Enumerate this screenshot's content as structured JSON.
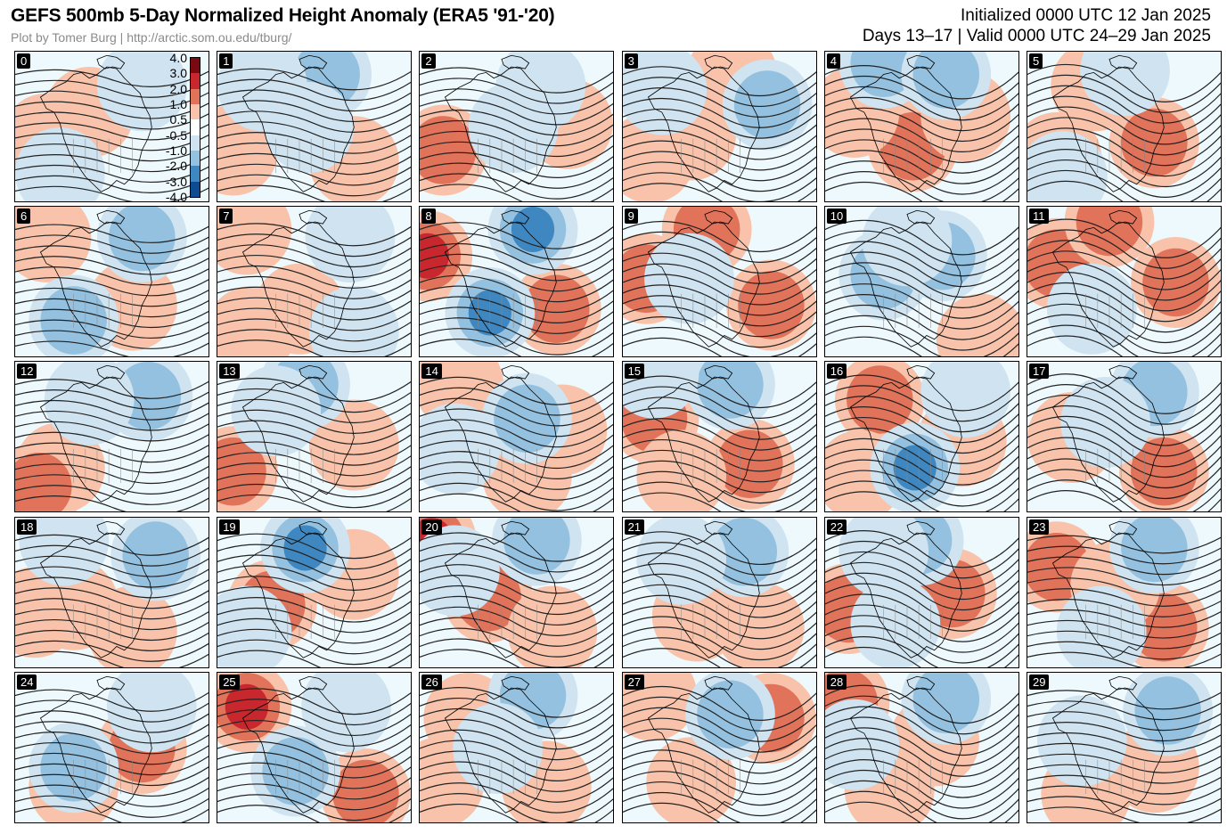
{
  "header": {
    "title": "GEFS 500mb 5-Day Normalized Height Anomaly (ERA5 '91-'20)",
    "credit": "Plot by Tomer Burg | http://arctic.som.ou.edu/tburg/",
    "initialized": "Initialized 0000 UTC 12 Jan 2025",
    "valid": "Days 13–17 | Valid 0000 UTC 24–29 Jan 2025"
  },
  "colorbar": {
    "ticks": [
      "4.0",
      "3.0",
      "2.0",
      "1.0",
      "0.5",
      "-0.5",
      "-1.0",
      "-2.0",
      "-3.0",
      "-4.0"
    ],
    "colors": [
      "#7a0a12",
      "#c8272d",
      "#e0735a",
      "#f8c3aa",
      "#ffffff",
      "#cfe3f0",
      "#93c1df",
      "#3f87c0",
      "#0e4b90"
    ]
  },
  "members": [
    {
      "label": "0",
      "pos": [
        [
          160,
          230,
          1
        ],
        [
          380,
          160,
          1
        ]
      ],
      "neg": [
        [
          230,
          320,
          1
        ],
        [
          650,
          90,
          1
        ]
      ]
    },
    {
      "label": "1",
      "pos": [
        [
          80,
          260,
          1
        ],
        [
          700,
          290,
          1
        ]
      ],
      "neg": [
        [
          560,
          60,
          2
        ],
        [
          230,
          90,
          1
        ],
        [
          470,
          200,
          1
        ]
      ]
    },
    {
      "label": "2",
      "pos": [
        [
          120,
          260,
          2
        ],
        [
          760,
          190,
          1
        ]
      ],
      "neg": [
        [
          480,
          200,
          1
        ],
        [
          620,
          90,
          1
        ]
      ]
    },
    {
      "label": "3",
      "pos": [
        [
          140,
          280,
          1
        ],
        [
          350,
          220,
          1
        ],
        [
          560,
          60,
          1
        ]
      ],
      "neg": [
        [
          740,
          140,
          2
        ],
        [
          200,
          100,
          1
        ]
      ]
    },
    {
      "label": "4",
      "pos": [
        [
          450,
          250,
          2
        ],
        [
          720,
          170,
          1
        ],
        [
          150,
          160,
          1
        ]
      ],
      "neg": [
        [
          300,
          30,
          2
        ],
        [
          620,
          60,
          2
        ]
      ]
    },
    {
      "label": "5",
      "pos": [
        [
          350,
          90,
          1
        ],
        [
          650,
          240,
          2
        ],
        [
          150,
          280,
          1
        ]
      ],
      "neg": [
        [
          500,
          50,
          1
        ],
        [
          180,
          330,
          1
        ]
      ]
    },
    {
      "label": "6",
      "pos": [
        [
          160,
          80,
          1
        ],
        [
          600,
          260,
          1
        ]
      ],
      "neg": [
        [
          300,
          300,
          2
        ],
        [
          650,
          80,
          2
        ]
      ]
    },
    {
      "label": "7",
      "pos": [
        [
          150,
          60,
          1
        ],
        [
          420,
          270,
          1
        ],
        [
          170,
          330,
          1
        ]
      ],
      "neg": [
        [
          680,
          80,
          1
        ],
        [
          700,
          330,
          1
        ]
      ]
    },
    {
      "label": "8",
      "pos": [
        [
          40,
          130,
          3
        ],
        [
          700,
          270,
          2
        ]
      ],
      "neg": [
        [
          360,
          280,
          3
        ],
        [
          580,
          60,
          3
        ]
      ]
    },
    {
      "label": "9",
      "pos": [
        [
          120,
          190,
          2
        ],
        [
          430,
          60,
          2
        ],
        [
          760,
          260,
          2
        ]
      ],
      "neg": [
        [
          340,
          190,
          1
        ]
      ]
    },
    {
      "label": "10",
      "pos": [
        [
          800,
          350,
          1
        ]
      ],
      "neg": [
        [
          300,
          180,
          2
        ],
        [
          600,
          130,
          2
        ],
        [
          420,
          90,
          1
        ]
      ]
    },
    {
      "label": "11",
      "pos": [
        [
          150,
          150,
          2
        ],
        [
          420,
          40,
          2
        ],
        [
          760,
          200,
          2
        ]
      ],
      "neg": [
        [
          330,
          270,
          1
        ]
      ]
    },
    {
      "label": "12",
      "pos": [
        [
          230,
          280,
          1
        ],
        [
          120,
          330,
          2
        ]
      ],
      "neg": [
        [
          680,
          90,
          2
        ],
        [
          380,
          100,
          1
        ]
      ]
    },
    {
      "label": "13",
      "pos": [
        [
          80,
          290,
          2
        ],
        [
          700,
          220,
          1
        ]
      ],
      "neg": [
        [
          450,
          60,
          2
        ],
        [
          300,
          130,
          1
        ]
      ]
    },
    {
      "label": "14",
      "pos": [
        [
          200,
          60,
          1
        ],
        [
          730,
          180,
          1
        ],
        [
          550,
          300,
          1
        ]
      ],
      "neg": [
        [
          550,
          150,
          2
        ],
        [
          180,
          230,
          1
        ]
      ]
    },
    {
      "label": "15",
      "pos": [
        [
          160,
          150,
          2
        ],
        [
          650,
          270,
          2
        ],
        [
          300,
          300,
          1
        ]
      ],
      "neg": [
        [
          550,
          60,
          2
        ],
        [
          160,
          30,
          1
        ]
      ]
    },
    {
      "label": "16",
      "pos": [
        [
          280,
          100,
          2
        ],
        [
          180,
          300,
          1
        ],
        [
          700,
          210,
          1
        ]
      ],
      "neg": [
        [
          460,
          280,
          3
        ],
        [
          720,
          80,
          1
        ]
      ]
    },
    {
      "label": "17",
      "pos": [
        [
          230,
          200,
          1
        ],
        [
          700,
          290,
          2
        ]
      ],
      "neg": [
        [
          650,
          80,
          2
        ],
        [
          400,
          160,
          1
        ]
      ]
    },
    {
      "label": "18",
      "pos": [
        [
          300,
          230,
          1
        ],
        [
          600,
          300,
          1
        ],
        [
          100,
          250,
          1
        ]
      ],
      "neg": [
        [
          720,
          100,
          2
        ],
        [
          250,
          60,
          1
        ]
      ]
    },
    {
      "label": "19",
      "pos": [
        [
          280,
          230,
          2
        ],
        [
          700,
          150,
          1
        ]
      ],
      "neg": [
        [
          450,
          80,
          3
        ],
        [
          150,
          300,
          1
        ]
      ]
    },
    {
      "label": "20",
      "pos": [
        [
          60,
          60,
          3
        ],
        [
          350,
          210,
          2
        ],
        [
          680,
          300,
          1
        ]
      ],
      "neg": [
        [
          600,
          60,
          2
        ],
        [
          180,
          140,
          1
        ]
      ]
    },
    {
      "label": "21",
      "pos": [
        [
          380,
          260,
          1
        ],
        [
          700,
          290,
          1
        ]
      ],
      "neg": [
        [
          620,
          90,
          2
        ],
        [
          300,
          110,
          1
        ]
      ]
    },
    {
      "label": "22",
      "pos": [
        [
          120,
          240,
          2
        ],
        [
          650,
          200,
          2
        ]
      ],
      "neg": [
        [
          480,
          60,
          2
        ],
        [
          360,
          280,
          1
        ],
        [
          300,
          90,
          1
        ]
      ]
    },
    {
      "label": "23",
      "pos": [
        [
          150,
          130,
          2
        ],
        [
          700,
          290,
          2
        ],
        [
          450,
          180,
          1
        ]
      ],
      "neg": [
        [
          650,
          80,
          2
        ],
        [
          380,
          300,
          1
        ]
      ]
    },
    {
      "label": "24",
      "pos": [
        [
          650,
          200,
          2
        ],
        [
          300,
          300,
          1
        ]
      ],
      "neg": [
        [
          300,
          250,
          2
        ],
        [
          700,
          90,
          1
        ]
      ]
    },
    {
      "label": "25",
      "pos": [
        [
          150,
          90,
          3
        ],
        [
          760,
          320,
          2
        ]
      ],
      "neg": [
        [
          400,
          260,
          2
        ],
        [
          660,
          90,
          1
        ]
      ]
    },
    {
      "label": "26",
      "pos": [
        [
          250,
          120,
          1
        ],
        [
          650,
          300,
          1
        ],
        [
          100,
          290,
          1
        ]
      ],
      "neg": [
        [
          580,
          60,
          2
        ],
        [
          400,
          200,
          1
        ]
      ]
    },
    {
      "label": "27",
      "pos": [
        [
          150,
          60,
          1
        ],
        [
          760,
          120,
          2
        ],
        [
          350,
          290,
          1
        ]
      ],
      "neg": [
        [
          550,
          110,
          2
        ]
      ]
    },
    {
      "label": "28",
      "pos": [
        [
          100,
          80,
          2
        ],
        [
          330,
          310,
          1
        ],
        [
          560,
          180,
          1
        ]
      ],
      "neg": [
        [
          620,
          70,
          2
        ],
        [
          150,
          190,
          1
        ]
      ]
    },
    {
      "label": "29",
      "pos": [
        [
          650,
          250,
          1
        ],
        [
          300,
          320,
          1
        ]
      ],
      "neg": [
        [
          720,
          100,
          2
        ],
        [
          280,
          180,
          1
        ]
      ]
    }
  ]
}
